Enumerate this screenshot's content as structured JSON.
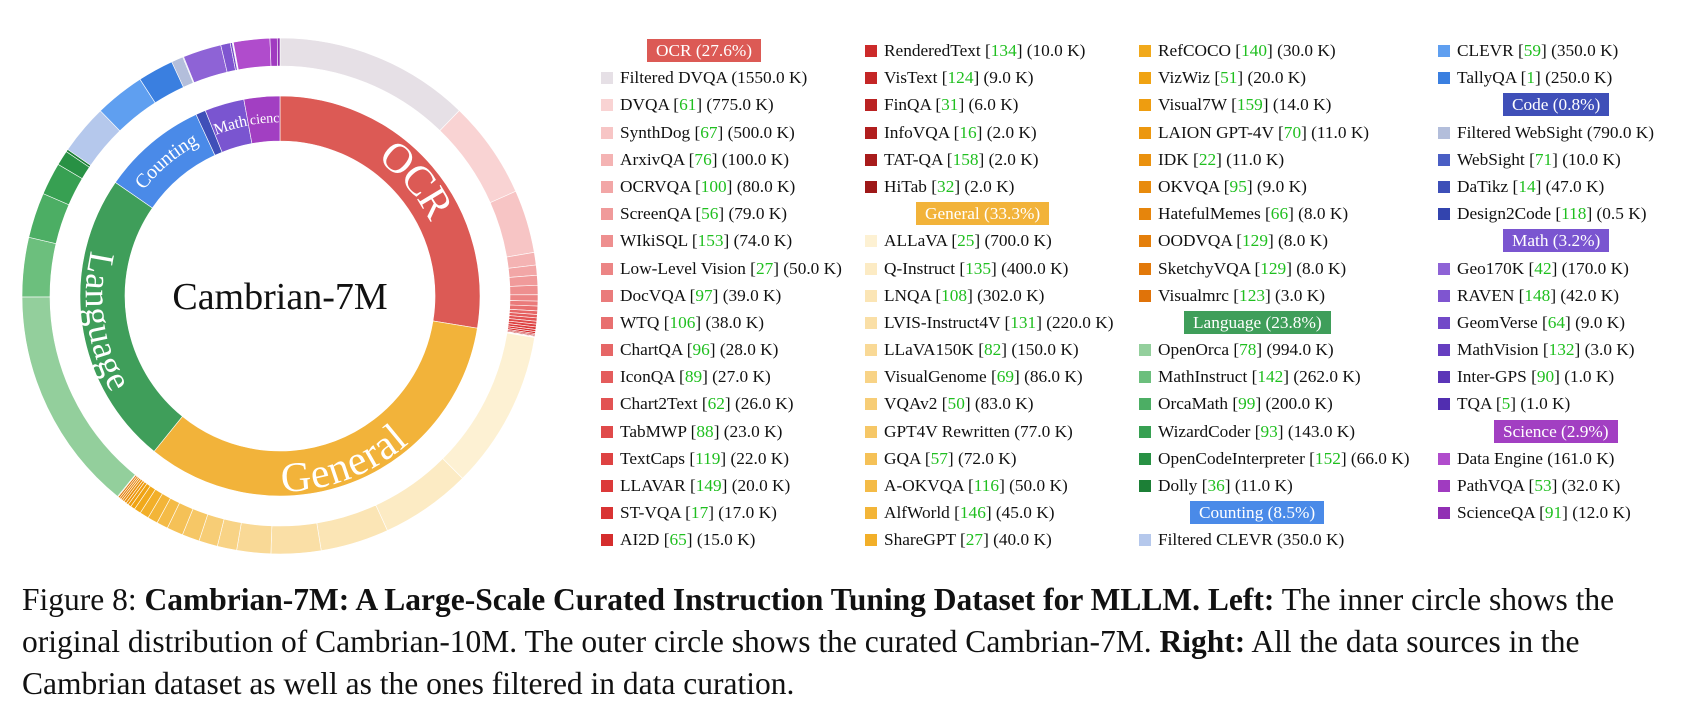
{
  "chart_data": {
    "type": "pie",
    "title": "Cambrian-7M",
    "inner_ring": [
      {
        "name": "OCR",
        "share": 27.6,
        "color": "#dc5a55"
      },
      {
        "name": "General",
        "share": 33.3,
        "color": "#f2b33a"
      },
      {
        "name": "Language",
        "share": 23.8,
        "color": "#3f9e5a"
      },
      {
        "name": "Counting",
        "share": 8.5,
        "color": "#4a8ae8"
      },
      {
        "name": "Code",
        "share": 0.8,
        "color": "#3f4fb8"
      },
      {
        "name": "Math",
        "share": 3.2,
        "color": "#7a55d0"
      },
      {
        "name": "Science",
        "share": 2.9,
        "color": "#a23fc2"
      }
    ],
    "inner_labels": {
      "ocr": "OCR",
      "general": "General",
      "language": "Language",
      "counting": "Counting",
      "code": "Code",
      "math": "Math",
      "science": "Science"
    },
    "groups": [
      {
        "key": "ocr",
        "header": "OCR (27.6%)",
        "color": "#dc5a55",
        "items": [
          {
            "name": "Filtered DVQA",
            "ref": "",
            "size": "(1550.0 K)",
            "value": 1550.0,
            "color": "#e6e0e6"
          },
          {
            "name": "DVQA",
            "ref": "61",
            "size": "(775.0 K)",
            "value": 775.0,
            "color": "#f9d3d3"
          },
          {
            "name": "SynthDog",
            "ref": "67",
            "size": "(500.0 K)",
            "value": 500.0,
            "color": "#f7c5c5"
          },
          {
            "name": "ArxivQA",
            "ref": "76",
            "size": "(100.0 K)",
            "value": 100.0,
            "color": "#f4b3b3"
          },
          {
            "name": "OCRVQA",
            "ref": "100",
            "size": "(80.0 K)",
            "value": 80.0,
            "color": "#f2a6a6"
          },
          {
            "name": "ScreenQA",
            "ref": "56",
            "size": "(79.0 K)",
            "value": 79.0,
            "color": "#f09a9a"
          },
          {
            "name": "WIkiSQL",
            "ref": "153",
            "size": "(74.0 K)",
            "value": 74.0,
            "color": "#ee8f8f"
          },
          {
            "name": "Low-Level Vision",
            "ref": "27",
            "size": "(50.0 K)",
            "value": 50.0,
            "color": "#ec8585"
          },
          {
            "name": "DocVQA",
            "ref": "97",
            "size": "(39.0 K)",
            "value": 39.0,
            "color": "#ea7b7b"
          },
          {
            "name": "WTQ",
            "ref": "106",
            "size": "(38.0 K)",
            "value": 38.0,
            "color": "#e87070"
          },
          {
            "name": "ChartQA",
            "ref": "96",
            "size": "(28.0 K)",
            "value": 28.0,
            "color": "#e66666"
          },
          {
            "name": "IconQA",
            "ref": "89",
            "size": "(27.0 K)",
            "value": 27.0,
            "color": "#e45c5c"
          },
          {
            "name": "Chart2Text",
            "ref": "62",
            "size": "(26.0 K)",
            "value": 26.0,
            "color": "#e25353"
          },
          {
            "name": "TabMWP",
            "ref": "88",
            "size": "(23.0 K)",
            "value": 23.0,
            "color": "#e04a4a"
          },
          {
            "name": "TextCaps",
            "ref": "119",
            "size": "(22.0 K)",
            "value": 22.0,
            "color": "#de4242"
          },
          {
            "name": "LLAVAR",
            "ref": "149",
            "size": "(20.0 K)",
            "value": 20.0,
            "color": "#dc3a3a"
          },
          {
            "name": "ST-VQA",
            "ref": "17",
            "size": "(17.0 K)",
            "value": 17.0,
            "color": "#d93333"
          },
          {
            "name": "AI2D",
            "ref": "65",
            "size": "(15.0 K)",
            "value": 15.0,
            "color": "#d52d2d"
          },
          {
            "name": "RenderedText",
            "ref": "134",
            "size": "(10.0 K)",
            "value": 10.0,
            "color": "#cc2a2a"
          },
          {
            "name": "VisText",
            "ref": "124",
            "size": "(9.0 K)",
            "value": 9.0,
            "color": "#c42626"
          },
          {
            "name": "FinQA",
            "ref": "31",
            "size": "(6.0 K)",
            "value": 6.0,
            "color": "#ba2222"
          },
          {
            "name": "InfoVQA",
            "ref": "16",
            "size": "(2.0 K)",
            "value": 2.0,
            "color": "#b11e1e"
          },
          {
            "name": "TAT-QA",
            "ref": "158",
            "size": "(2.0 K)",
            "value": 2.0,
            "color": "#a81b1b"
          },
          {
            "name": "HiTab",
            "ref": "32",
            "size": "(2.0 K)",
            "value": 2.0,
            "color": "#9e1818"
          }
        ]
      },
      {
        "key": "general",
        "header": "General (33.3%)",
        "color": "#f2b33a",
        "items": [
          {
            "name": "ALLaVA",
            "ref": "25",
            "size": "(700.0 K)",
            "value": 700.0,
            "color": "#fdf1d3"
          },
          {
            "name": "Q-Instruct",
            "ref": "135",
            "size": "(400.0 K)",
            "value": 400.0,
            "color": "#fcebc4"
          },
          {
            "name": "LNQA",
            "ref": "108",
            "size": "(302.0 K)",
            "value": 302.0,
            "color": "#fbe5b5"
          },
          {
            "name": "LVIS-Instruct4V",
            "ref": "131",
            "size": "(220.0 K)",
            "value": 220.0,
            "color": "#fadfa6"
          },
          {
            "name": "LLaVA150K",
            "ref": "82",
            "size": "(150.0 K)",
            "value": 150.0,
            "color": "#f9d996"
          },
          {
            "name": "VisualGenome",
            "ref": "69",
            "size": "(86.0 K)",
            "value": 86.0,
            "color": "#f8d386"
          },
          {
            "name": "VQAv2",
            "ref": "50",
            "size": "(83.0 K)",
            "value": 83.0,
            "color": "#f7cd76"
          },
          {
            "name": "GPT4V Rewritten",
            "ref": "",
            "size": "(77.0 K)",
            "value": 77.0,
            "color": "#f6c766"
          },
          {
            "name": "GQA",
            "ref": "57",
            "size": "(72.0 K)",
            "value": 72.0,
            "color": "#f5c157"
          },
          {
            "name": "A-OKVQA",
            "ref": "116",
            "size": "(50.0 K)",
            "value": 50.0,
            "color": "#f4bb47"
          },
          {
            "name": "AlfWorld",
            "ref": "146",
            "size": "(45.0 K)",
            "value": 45.0,
            "color": "#f3b538"
          },
          {
            "name": "ShareGPT",
            "ref": "27",
            "size": "(40.0 K)",
            "value": 40.0,
            "color": "#f2af29"
          },
          {
            "name": "RefCOCO",
            "ref": "140",
            "size": "(30.0 K)",
            "value": 30.0,
            "color": "#f1a91b"
          },
          {
            "name": "VizWiz",
            "ref": "51",
            "size": "(20.0 K)",
            "value": 20.0,
            "color": "#f0a312"
          },
          {
            "name": "Visual7W",
            "ref": "159",
            "size": "(14.0 K)",
            "value": 14.0,
            "color": "#ee9d10"
          },
          {
            "name": "LAION GPT-4V",
            "ref": "70",
            "size": "(11.0 K)",
            "value": 11.0,
            "color": "#ec970f"
          },
          {
            "name": "IDK",
            "ref": "22",
            "size": "(11.0 K)",
            "value": 11.0,
            "color": "#ea910e"
          },
          {
            "name": "OKVQA",
            "ref": "95",
            "size": "(9.0 K)",
            "value": 9.0,
            "color": "#e88b0d"
          },
          {
            "name": "HatefulMemes",
            "ref": "66",
            "size": "(8.0 K)",
            "value": 8.0,
            "color": "#e6850c"
          },
          {
            "name": "OODVQA",
            "ref": "129",
            "size": "(8.0 K)",
            "value": 8.0,
            "color": "#e47f0b"
          },
          {
            "name": "SketchyVQA",
            "ref": "129",
            "size": "(8.0 K)",
            "value": 8.0,
            "color": "#e2790a"
          },
          {
            "name": "Visualmrc",
            "ref": "123",
            "size": "(3.0 K)",
            "value": 3.0,
            "color": "#e07309"
          }
        ]
      },
      {
        "key": "language",
        "header": "Language (23.8%)",
        "color": "#3f9e5a",
        "items": [
          {
            "name": "OpenOrca",
            "ref": "78",
            "size": "(994.0 K)",
            "value": 994.0,
            "color": "#93cf9c"
          },
          {
            "name": "MathInstruct",
            "ref": "142",
            "size": "(262.0 K)",
            "value": 262.0,
            "color": "#6cbf7d"
          },
          {
            "name": "OrcaMath",
            "ref": "99",
            "size": "(200.0 K)",
            "value": 200.0,
            "color": "#4cae64"
          },
          {
            "name": "WizardCoder",
            "ref": "93",
            "size": "(143.0 K)",
            "value": 143.0,
            "color": "#37a052"
          },
          {
            "name": "OpenCodeInterpreter",
            "ref": "152",
            "size": "(66.0 K)",
            "value": 66.0,
            "color": "#289144"
          },
          {
            "name": "Dolly",
            "ref": "36",
            "size": "(11.0 K)",
            "value": 11.0,
            "color": "#1c7f36"
          }
        ]
      },
      {
        "key": "counting",
        "header": "Counting (8.5%)",
        "color": "#4a8ae8",
        "items": [
          {
            "name": "Filtered CLEVR",
            "ref": "",
            "size": "(350.0 K)",
            "value": 350.0,
            "color": "#b5c8ec"
          },
          {
            "name": "CLEVR",
            "ref": "59",
            "size": "(350.0 K)",
            "value": 350.0,
            "color": "#5f9ff0"
          },
          {
            "name": "TallyQA",
            "ref": "1",
            "size": "(250.0 K)",
            "value": 250.0,
            "color": "#3a7fe0"
          }
        ]
      },
      {
        "key": "code",
        "header": "Code (0.8%)",
        "color": "#3f4fb8",
        "items": [
          {
            "name": "Filtered WebSight",
            "ref": "",
            "size": "(790.0 K)",
            "value": 790.0,
            "color": "#b3bedb"
          },
          {
            "name": "WebSight",
            "ref": "71",
            "size": "(10.0 K)",
            "value": 10.0,
            "color": "#4a5ec4"
          },
          {
            "name": "DaTikz",
            "ref": "14",
            "size": "(47.0 K)",
            "value": 47.0,
            "color": "#3d4fb8"
          },
          {
            "name": "Design2Code",
            "ref": "118",
            "size": "(0.5 K)",
            "value": 0.5,
            "color": "#3344ae"
          }
        ]
      },
      {
        "key": "math",
        "header": "Math (3.2%)",
        "color": "#7a55d0",
        "items": [
          {
            "name": "Geo170K",
            "ref": "42",
            "size": "(170.0 K)",
            "value": 170.0,
            "color": "#8e63d6"
          },
          {
            "name": "RAVEN",
            "ref": "148",
            "size": "(42.0 K)",
            "value": 42.0,
            "color": "#7f55d0"
          },
          {
            "name": "GeomVerse",
            "ref": "64",
            "size": "(9.0 K)",
            "value": 9.0,
            "color": "#7249c8"
          },
          {
            "name": "MathVision",
            "ref": "132",
            "size": "(3.0 K)",
            "value": 3.0,
            "color": "#663ec0"
          },
          {
            "name": "Inter-GPS",
            "ref": "90",
            "size": "(1.0 K)",
            "value": 1.0,
            "color": "#5b35b8"
          },
          {
            "name": "TQA",
            "ref": "5",
            "size": "(1.0 K)",
            "value": 1.0,
            "color": "#512eb0"
          }
        ]
      },
      {
        "key": "science",
        "header": "Science (2.9%)",
        "color": "#a23fc2",
        "items": [
          {
            "name": "Data Engine",
            "ref": "",
            "size": "(161.0 K)",
            "value": 161.0,
            "color": "#b04ccc"
          },
          {
            "name": "PathVQA",
            "ref": "53",
            "size": "(32.0 K)",
            "value": 32.0,
            "color": "#a03bc0"
          },
          {
            "name": "ScienceQA",
            "ref": "91",
            "size": "(12.0 K)",
            "value": 12.0,
            "color": "#912fb4"
          }
        ]
      }
    ]
  },
  "legend_layout": [
    [
      {
        "g": "ocr",
        "h": true
      },
      {
        "g": "ocr",
        "i": 0
      },
      {
        "g": "ocr",
        "i": 1
      },
      {
        "g": "ocr",
        "i": 2
      },
      {
        "g": "ocr",
        "i": 3
      },
      {
        "g": "ocr",
        "i": 4
      },
      {
        "g": "ocr",
        "i": 5
      },
      {
        "g": "ocr",
        "i": 6
      },
      {
        "g": "ocr",
        "i": 7
      },
      {
        "g": "ocr",
        "i": 8
      },
      {
        "g": "ocr",
        "i": 9
      },
      {
        "g": "ocr",
        "i": 10
      },
      {
        "g": "ocr",
        "i": 11
      },
      {
        "g": "ocr",
        "i": 12
      },
      {
        "g": "ocr",
        "i": 13
      },
      {
        "g": "ocr",
        "i": 14
      },
      {
        "g": "ocr",
        "i": 15
      },
      {
        "g": "ocr",
        "i": 16
      },
      {
        "g": "ocr",
        "i": 17
      }
    ],
    [
      {
        "g": "ocr",
        "i": 18
      },
      {
        "g": "ocr",
        "i": 19
      },
      {
        "g": "ocr",
        "i": 20
      },
      {
        "g": "ocr",
        "i": 21
      },
      {
        "g": "ocr",
        "i": 22
      },
      {
        "g": "ocr",
        "i": 23
      },
      {
        "g": "general",
        "h": true
      },
      {
        "g": "general",
        "i": 0
      },
      {
        "g": "general",
        "i": 1
      },
      {
        "g": "general",
        "i": 2
      },
      {
        "g": "general",
        "i": 3
      },
      {
        "g": "general",
        "i": 4
      },
      {
        "g": "general",
        "i": 5
      },
      {
        "g": "general",
        "i": 6
      },
      {
        "g": "general",
        "i": 7
      },
      {
        "g": "general",
        "i": 8
      },
      {
        "g": "general",
        "i": 9
      },
      {
        "g": "general",
        "i": 10
      },
      {
        "g": "general",
        "i": 11
      }
    ],
    [
      {
        "g": "general",
        "i": 12
      },
      {
        "g": "general",
        "i": 13
      },
      {
        "g": "general",
        "i": 14
      },
      {
        "g": "general",
        "i": 15
      },
      {
        "g": "general",
        "i": 16
      },
      {
        "g": "general",
        "i": 17
      },
      {
        "g": "general",
        "i": 18
      },
      {
        "g": "general",
        "i": 19
      },
      {
        "g": "general",
        "i": 20
      },
      {
        "g": "general",
        "i": 21
      },
      {
        "g": "language",
        "h": true
      },
      {
        "g": "language",
        "i": 0
      },
      {
        "g": "language",
        "i": 1
      },
      {
        "g": "language",
        "i": 2
      },
      {
        "g": "language",
        "i": 3
      },
      {
        "g": "language",
        "i": 4
      },
      {
        "g": "language",
        "i": 5
      },
      {
        "g": "counting",
        "h": true
      },
      {
        "g": "counting",
        "i": 0
      }
    ],
    [
      {
        "g": "counting",
        "i": 1
      },
      {
        "g": "counting",
        "i": 2
      },
      {
        "g": "code",
        "h": true
      },
      {
        "g": "code",
        "i": 0
      },
      {
        "g": "code",
        "i": 1
      },
      {
        "g": "code",
        "i": 2
      },
      {
        "g": "code",
        "i": 3
      },
      {
        "g": "math",
        "h": true
      },
      {
        "g": "math",
        "i": 0
      },
      {
        "g": "math",
        "i": 1
      },
      {
        "g": "math",
        "i": 2
      },
      {
        "g": "math",
        "i": 3
      },
      {
        "g": "math",
        "i": 4
      },
      {
        "g": "math",
        "i": 5
      },
      {
        "g": "science",
        "h": true
      },
      {
        "g": "science",
        "i": 0
      },
      {
        "g": "science",
        "i": 1
      },
      {
        "g": "science",
        "i": 2
      }
    ]
  ],
  "caption": {
    "prefix": "Figure 8: ",
    "bold_title": "Cambrian-7M: A Large-Scale Curated Instruction Tuning Dataset for MLLM.",
    "left_label": "Left:",
    "left_text": "The inner circle shows the original distribution of Cambrian-10M. The outer circle shows the curated Cambrian-7M.",
    "right_label": "Right:",
    "right_text": "All the data sources in the Cambrian dataset as well as the ones filtered in data curation."
  }
}
